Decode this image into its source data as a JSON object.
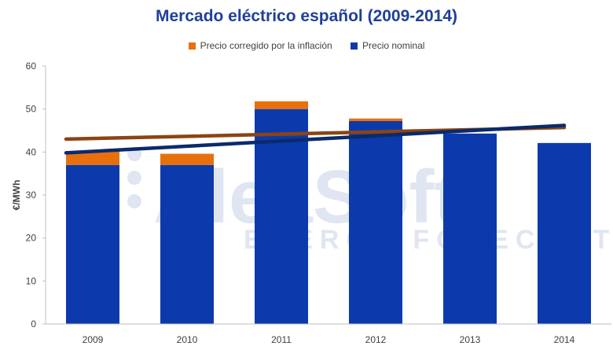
{
  "chart_data": {
    "type": "bar",
    "stacked": true,
    "title": "Mercado eléctrico español (2009-2014)",
    "xlabel": "",
    "ylabel": "€/MWh",
    "ylim": [
      0,
      60
    ],
    "yticks": [
      0,
      10,
      20,
      30,
      40,
      50,
      60
    ],
    "categories": [
      "2009",
      "2010",
      "2011",
      "2012",
      "2013",
      "2014"
    ],
    "series": [
      {
        "name": "Precio nominal",
        "color": "#0c3aad",
        "values": [
          37.0,
          37.0,
          50.0,
          47.2,
          44.3,
          42.1
        ]
      },
      {
        "name": "Precio corregido por la inflación",
        "color": "#e8700c",
        "values": [
          3.2,
          2.6,
          1.8,
          0.6,
          0,
          0
        ]
      }
    ],
    "trendlines": [
      {
        "series": "Precio corregido por la inflación",
        "color": "#8a4513",
        "start": 43.0,
        "end": 45.7
      },
      {
        "series": "Precio nominal",
        "color": "#0a2a6a",
        "start": 39.8,
        "end": 46.2
      }
    ],
    "legend_position": "top",
    "grid": false
  },
  "legend": {
    "items": [
      {
        "label": "Precio corregido por la inflación",
        "color": "#e8700c"
      },
      {
        "label": "Precio nominal",
        "color": "#0c3aad"
      }
    ]
  },
  "watermark": {
    "line1": "AleaSoft",
    "line2": "ENERGY FORECASTING"
  }
}
